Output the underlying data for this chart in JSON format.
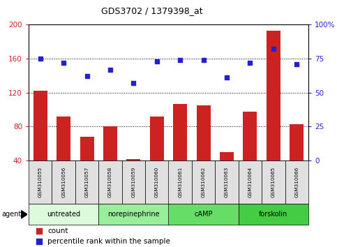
{
  "title": "GDS3702 / 1379398_at",
  "samples": [
    "GSM310055",
    "GSM310056",
    "GSM310057",
    "GSM310058",
    "GSM310059",
    "GSM310060",
    "GSM310061",
    "GSM310062",
    "GSM310063",
    "GSM310064",
    "GSM310065",
    "GSM310066"
  ],
  "counts": [
    122,
    92,
    68,
    80,
    42,
    92,
    107,
    105,
    50,
    98,
    193,
    83
  ],
  "percentile_ranks": [
    75,
    72,
    62,
    67,
    57,
    73,
    74,
    74,
    61,
    72,
    82,
    71
  ],
  "groups": [
    {
      "label": "untreated",
      "start": 0,
      "end": 3,
      "color": "#ddfadd"
    },
    {
      "label": "norepinephrine",
      "start": 3,
      "end": 6,
      "color": "#99ee99"
    },
    {
      "label": "cAMP",
      "start": 6,
      "end": 9,
      "color": "#66dd66"
    },
    {
      "label": "forskolin",
      "start": 9,
      "end": 12,
      "color": "#44cc44"
    }
  ],
  "left_ylim": [
    40,
    200
  ],
  "left_yticks": [
    40,
    80,
    120,
    160,
    200
  ],
  "right_ylim": [
    0,
    100
  ],
  "right_yticks": [
    0,
    25,
    50,
    75,
    100
  ],
  "bar_color": "#cc2222",
  "dot_color": "#2222cc",
  "grid_color": "black",
  "sample_box_color": "#e0e0e0",
  "legend_count_label": "count",
  "legend_pct_label": "percentile rank within the sample",
  "agent_label": "agent",
  "ylabel_left_color": "#cc2222",
  "ylabel_right_color": "#2222cc"
}
